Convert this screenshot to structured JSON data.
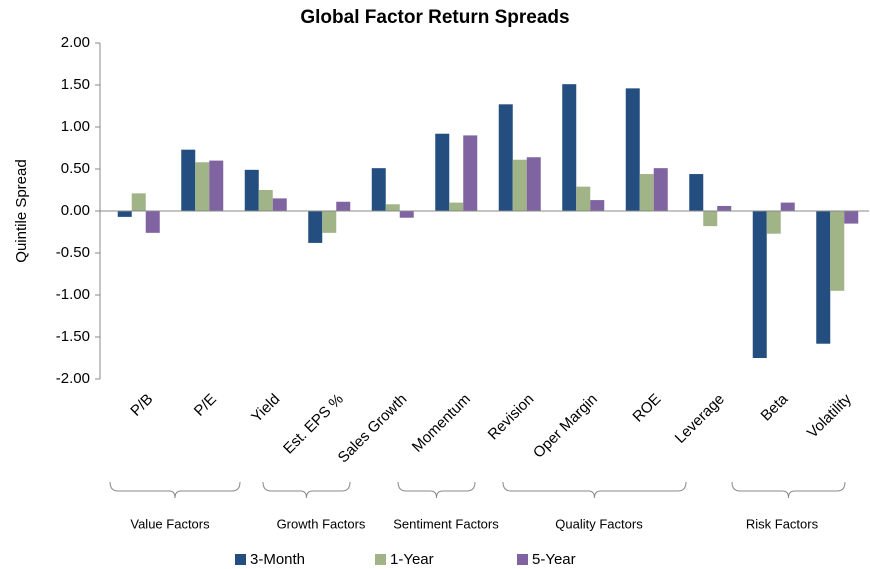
{
  "chart_data": {
    "type": "bar",
    "title": "Global Factor Return Spreads",
    "y_label": "Quintile Spread",
    "categories": [
      "P/B",
      "P/E",
      "Yield",
      "Est. EPS %",
      "Sales Growth",
      "Momentum",
      "Revision",
      "Oper Margin",
      "ROE",
      "Leverage",
      "Beta",
      "Volatility"
    ],
    "series": [
      {
        "name": "3-Month",
        "color": "#254e80",
        "values": [
          -0.07,
          0.73,
          0.49,
          -0.38,
          0.51,
          0.92,
          1.27,
          1.51,
          1.46,
          0.44,
          -1.75,
          -1.58
        ]
      },
      {
        "name": "1-Year",
        "color": "#a0b487",
        "values": [
          0.21,
          0.58,
          0.25,
          -0.26,
          0.08,
          0.1,
          0.61,
          0.29,
          0.44,
          -0.18,
          -0.27,
          -0.95
        ]
      },
      {
        "name": "5-Year",
        "color": "#8064a2",
        "values": [
          -0.26,
          0.6,
          0.15,
          0.11,
          -0.08,
          0.9,
          0.64,
          0.13,
          0.51,
          0.06,
          0.1,
          -0.15
        ]
      }
    ],
    "groups": [
      "Value Factors",
      "Growth Factors",
      "Sentiment Factors",
      "Quality Factors",
      "Risk Factors"
    ],
    "ylim": [
      -2,
      2
    ],
    "yticks": [
      {
        "value": -2,
        "label": "-2.00"
      },
      {
        "value": -1.5,
        "label": "-1.50"
      },
      {
        "value": -1,
        "label": "-1.00"
      },
      {
        "value": -0.5,
        "label": "-0.50"
      },
      {
        "value": 0,
        "label": "0.00"
      },
      {
        "value": 0.5,
        "label": "0.50"
      },
      {
        "value": 1,
        "label": "1.00"
      },
      {
        "value": 1.5,
        "label": "1.50"
      },
      {
        "value": 2,
        "label": "2.00"
      }
    ],
    "grid": false,
    "legend": "bottom"
  }
}
